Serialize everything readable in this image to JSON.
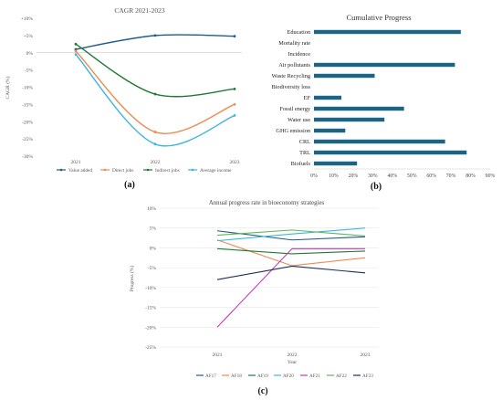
{
  "panel_labels": {
    "a": "(a)",
    "b": "(b)",
    "c": "(c)"
  },
  "chart_data": [
    {
      "id": "a",
      "type": "line",
      "title": "CAGR 2021-2023",
      "xlabel": "",
      "ylabel": "CAGR (%)",
      "categories": [
        "2021",
        "2022",
        "2023"
      ],
      "ylim": [
        -30,
        10
      ],
      "yticks": [
        10,
        5,
        0,
        -5,
        -10,
        -15,
        -20,
        -25,
        -30
      ],
      "ytick_labels": [
        "+10%",
        "+5%",
        "0%",
        "-5%",
        "-10%",
        "-15%",
        "-20%",
        "-25%",
        "-30%"
      ],
      "grid": false,
      "legend": "bottom",
      "series": [
        {
          "name": "Value added",
          "color": "#1f5c8b",
          "values": [
            1.0,
            5.0,
            4.8
          ]
        },
        {
          "name": "Direct jobs",
          "color": "#ee8a4f",
          "values": [
            0.5,
            -23.0,
            -15.0
          ]
        },
        {
          "name": "Indirect jobs",
          "color": "#1f7a36",
          "values": [
            2.5,
            -12.0,
            -10.5
          ]
        },
        {
          "name": "Average income",
          "color": "#3bb6e0",
          "values": [
            -0.5,
            -26.5,
            -18.2
          ]
        }
      ]
    },
    {
      "id": "b",
      "type": "bar",
      "orientation": "horizontal",
      "title": "Cumulative Progress",
      "xlabel": "",
      "ylabel": "",
      "color": "#1b6484",
      "xlim": [
        0,
        90
      ],
      "xticks": [
        0,
        10,
        20,
        30,
        40,
        50,
        60,
        70,
        80,
        90
      ],
      "xtick_labels": [
        "0%",
        "10%",
        "20%",
        "30%",
        "40%",
        "50%",
        "60%",
        "70%",
        "80%",
        "90%"
      ],
      "grid": false,
      "categories": [
        "Education",
        "Mortality rate",
        "Incidence",
        "Air pollutants",
        "Waste Recycling",
        "Biodiversity loss",
        "EF",
        "Fossil energy",
        "Water use",
        "GHG emission",
        "CRL",
        "TRL",
        "Biofuels"
      ],
      "values": [
        75,
        0,
        0,
        72,
        31,
        0,
        14,
        46,
        36,
        16,
        67,
        78,
        22
      ]
    },
    {
      "id": "c",
      "type": "line",
      "title": "Annual progress rate in bioeconomy strategies",
      "xlabel": "Year",
      "ylabel": "Progress (%)",
      "categories": [
        "2021",
        "2022",
        "2023"
      ],
      "ylim": [
        -25,
        10
      ],
      "yticks": [
        10,
        5,
        0,
        -5,
        -10,
        -15,
        -20,
        -25
      ],
      "ytick_labels": [
        "10%",
        "5%",
        "0%",
        "-5%",
        "-10%",
        "-15%",
        "-20%",
        "-25%"
      ],
      "grid": true,
      "legend": "bottom",
      "series": [
        {
          "name": "AF17",
          "color": "#1f5c8b",
          "values": [
            4.3,
            2.0,
            2.8
          ]
        },
        {
          "name": "AF18",
          "color": "#ee8a4f",
          "values": [
            2.0,
            -4.5,
            -2.5
          ]
        },
        {
          "name": "AF19",
          "color": "#1f7a36",
          "values": [
            -0.2,
            -1.5,
            -0.8
          ]
        },
        {
          "name": "AF20",
          "color": "#3bb6e0",
          "values": [
            1.8,
            3.5,
            5.0
          ]
        },
        {
          "name": "AF21",
          "color": "#c23ab8",
          "values": [
            -20.0,
            -0.2,
            -0.2
          ]
        },
        {
          "name": "AF22",
          "color": "#5cb85c",
          "values": [
            3.2,
            4.5,
            3.0
          ]
        },
        {
          "name": "AF23",
          "color": "#1c2f5a",
          "values": [
            -8.0,
            -4.6,
            -6.3
          ]
        }
      ]
    }
  ]
}
